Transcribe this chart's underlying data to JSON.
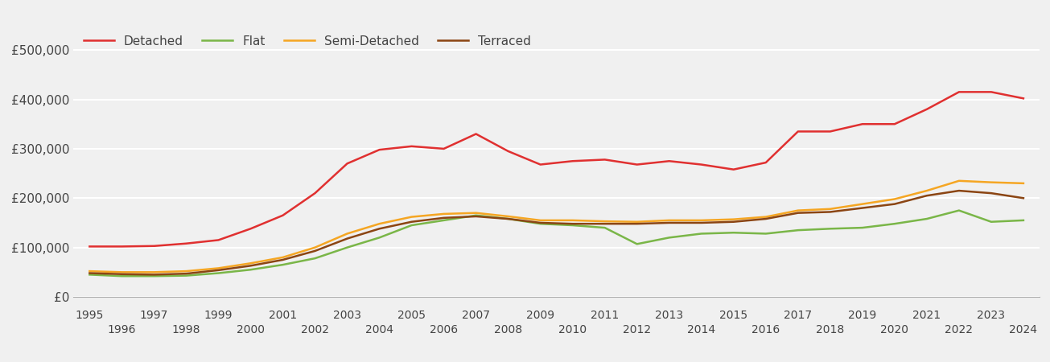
{
  "series": {
    "Detached": {
      "color": "#e03030",
      "years": [
        1995,
        1996,
        1997,
        1998,
        1999,
        2000,
        2001,
        2002,
        2003,
        2004,
        2005,
        2006,
        2007,
        2008,
        2009,
        2010,
        2011,
        2012,
        2013,
        2014,
        2015,
        2016,
        2017,
        2018,
        2019,
        2020,
        2021,
        2022,
        2023,
        2024
      ],
      "values": [
        102000,
        102000,
        103000,
        108000,
        115000,
        138000,
        165000,
        210000,
        270000,
        298000,
        305000,
        300000,
        330000,
        295000,
        268000,
        275000,
        278000,
        268000,
        275000,
        268000,
        258000,
        272000,
        335000,
        335000,
        350000,
        350000,
        380000,
        415000,
        415000,
        402000
      ]
    },
    "Flat": {
      "color": "#7ab648",
      "years": [
        1995,
        1996,
        1997,
        1998,
        1999,
        2000,
        2001,
        2002,
        2003,
        2004,
        2005,
        2006,
        2007,
        2008,
        2009,
        2010,
        2011,
        2012,
        2013,
        2014,
        2015,
        2016,
        2017,
        2018,
        2019,
        2020,
        2021,
        2022,
        2023,
        2024
      ],
      "values": [
        45000,
        42000,
        42000,
        43000,
        48000,
        55000,
        65000,
        78000,
        100000,
        120000,
        145000,
        155000,
        165000,
        158000,
        148000,
        145000,
        140000,
        107000,
        120000,
        128000,
        130000,
        128000,
        135000,
        138000,
        140000,
        148000,
        158000,
        175000,
        152000,
        155000
      ]
    },
    "Semi-Detached": {
      "color": "#f5a623",
      "years": [
        1995,
        1996,
        1997,
        1998,
        1999,
        2000,
        2001,
        2002,
        2003,
        2004,
        2005,
        2006,
        2007,
        2008,
        2009,
        2010,
        2011,
        2012,
        2013,
        2014,
        2015,
        2016,
        2017,
        2018,
        2019,
        2020,
        2021,
        2022,
        2023,
        2024
      ],
      "values": [
        52000,
        50000,
        50000,
        52000,
        58000,
        68000,
        80000,
        100000,
        128000,
        148000,
        162000,
        168000,
        170000,
        163000,
        155000,
        155000,
        153000,
        152000,
        155000,
        155000,
        157000,
        162000,
        175000,
        178000,
        188000,
        198000,
        215000,
        235000,
        232000,
        230000
      ]
    },
    "Terraced": {
      "color": "#8B4513",
      "years": [
        1995,
        1996,
        1997,
        1998,
        1999,
        2000,
        2001,
        2002,
        2003,
        2004,
        2005,
        2006,
        2007,
        2008,
        2009,
        2010,
        2011,
        2012,
        2013,
        2014,
        2015,
        2016,
        2017,
        2018,
        2019,
        2020,
        2021,
        2022,
        2023,
        2024
      ],
      "values": [
        48000,
        46000,
        45000,
        47000,
        54000,
        63000,
        75000,
        93000,
        118000,
        138000,
        152000,
        160000,
        163000,
        158000,
        150000,
        148000,
        148000,
        148000,
        150000,
        150000,
        152000,
        158000,
        170000,
        172000,
        180000,
        188000,
        205000,
        215000,
        210000,
        200000
      ]
    }
  },
  "ylim": [
    0,
    550000
  ],
  "yticks": [
    0,
    100000,
    200000,
    300000,
    400000,
    500000
  ],
  "ytick_labels": [
    "£0",
    "£100,000",
    "£200,000",
    "£300,000",
    "£400,000",
    "£500,000"
  ],
  "xlim": [
    1994.5,
    2024.5
  ],
  "xticks_row1": [
    1995,
    1997,
    1999,
    2001,
    2003,
    2005,
    2007,
    2009,
    2011,
    2013,
    2015,
    2017,
    2019,
    2021,
    2023
  ],
  "xticks_row2": [
    1996,
    1998,
    2000,
    2002,
    2004,
    2006,
    2008,
    2010,
    2012,
    2014,
    2016,
    2018,
    2020,
    2022,
    2024
  ],
  "background_color": "#f0f0f0",
  "grid_color": "#ffffff",
  "line_width": 1.8,
  "legend_order": [
    "Detached",
    "Flat",
    "Semi-Detached",
    "Terraced"
  ]
}
